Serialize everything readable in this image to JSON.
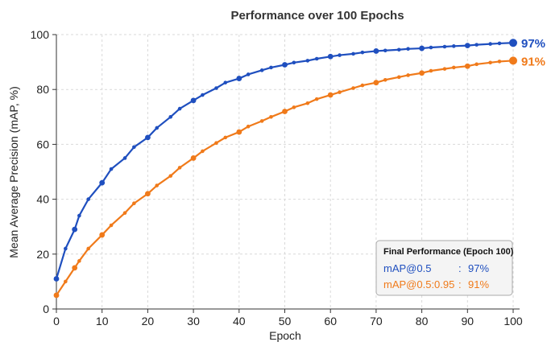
{
  "chart_data": {
    "type": "line",
    "title": "Performance over 100 Epochs",
    "xlabel": "Epoch",
    "ylabel": "Mean Average Precision (mAP, %)",
    "xlim": [
      0,
      100
    ],
    "ylim": [
      0,
      100
    ],
    "xticks": [
      0,
      10,
      20,
      30,
      40,
      50,
      60,
      70,
      80,
      90,
      100
    ],
    "yticks": [
      0,
      20,
      40,
      60,
      80,
      100
    ],
    "grid": true,
    "series": [
      {
        "name": "mAP@0.5",
        "color": "#1f4fbf",
        "x": [
          0,
          2,
          4,
          5,
          7,
          10,
          12,
          15,
          17,
          20,
          22,
          25,
          27,
          30,
          32,
          35,
          37,
          40,
          42,
          45,
          47,
          50,
          52,
          55,
          57,
          60,
          62,
          65,
          67,
          70,
          72,
          75,
          77,
          80,
          82,
          85,
          87,
          90,
          92,
          95,
          97,
          100
        ],
        "values": [
          11,
          22,
          29,
          34,
          40,
          46,
          51,
          55,
          59,
          62.5,
          66,
          70,
          73,
          76,
          78,
          80.5,
          82.5,
          84,
          85.5,
          87,
          88,
          89,
          89.8,
          90.5,
          91.2,
          92,
          92.5,
          93,
          93.5,
          94,
          94.2,
          94.5,
          94.8,
          95,
          95.3,
          95.6,
          95.8,
          96,
          96.3,
          96.6,
          96.8,
          97
        ]
      },
      {
        "name": "mAP@0.5:0.95",
        "color": "#f07a1a",
        "x": [
          0,
          2,
          4,
          5,
          7,
          10,
          12,
          15,
          17,
          20,
          22,
          25,
          27,
          30,
          32,
          35,
          37,
          40,
          42,
          45,
          47,
          50,
          52,
          55,
          57,
          60,
          62,
          65,
          67,
          70,
          72,
          75,
          77,
          80,
          82,
          85,
          87,
          90,
          92,
          95,
          97,
          100
        ],
        "values": [
          5,
          10,
          15,
          17.5,
          22,
          27,
          30.5,
          35,
          38.5,
          42,
          45,
          48.5,
          51.5,
          55,
          57.5,
          60.5,
          62.5,
          64.5,
          66.5,
          68.5,
          70,
          72,
          73.5,
          75,
          76.5,
          78,
          79,
          80.5,
          81.5,
          82.5,
          83.5,
          84.5,
          85.2,
          86,
          86.8,
          87.5,
          88,
          88.5,
          89.2,
          89.8,
          90.2,
          90.5
        ]
      }
    ],
    "final_labels": [
      "97%",
      "91%"
    ],
    "legend": {
      "placement": "bottom-right",
      "title": "Final Performance (Epoch 100)",
      "items": [
        {
          "label": "mAP@0.5",
          "sep": ":",
          "value": "97%",
          "color": "#1f4fbf"
        },
        {
          "label": "mAP@0.5:0.95",
          "sep": ":",
          "value": "91%",
          "color": "#f07a1a"
        }
      ]
    }
  }
}
